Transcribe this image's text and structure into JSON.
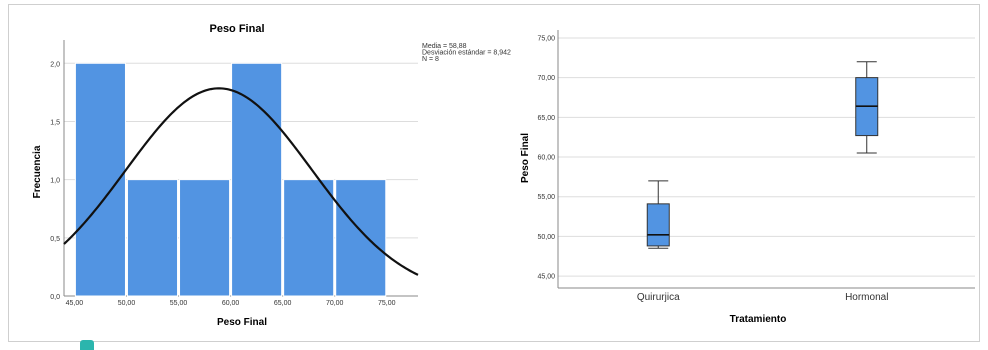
{
  "chart_data": [
    {
      "type": "bar",
      "subtype": "histogram",
      "title": "Peso Final",
      "xlabel": "Peso Final",
      "ylabel": "Frecuencia",
      "xlim": [
        44,
        78
      ],
      "ylim": [
        0,
        2.2
      ],
      "x_ticks": [
        "45,00",
        "50,00",
        "55,00",
        "60,00",
        "65,00",
        "70,00",
        "75,00"
      ],
      "x_tick_values": [
        45,
        50,
        55,
        60,
        65,
        70,
        75
      ],
      "y_ticks": [
        "0,0",
        "0,5",
        "1,0",
        "1,5",
        "2,0"
      ],
      "y_tick_values": [
        0,
        0.5,
        1.0,
        1.5,
        2.0
      ],
      "bins": [
        {
          "from": 45,
          "to": 50,
          "count": 2
        },
        {
          "from": 50,
          "to": 55,
          "count": 1
        },
        {
          "from": 55,
          "to": 60,
          "count": 1
        },
        {
          "from": 60,
          "to": 65,
          "count": 2
        },
        {
          "from": 65,
          "to": 70,
          "count": 1
        },
        {
          "from": 70,
          "to": 75,
          "count": 1
        }
      ],
      "normal_curve": {
        "mean": 58.88,
        "sd": 8.942,
        "n": 8,
        "bin_width": 5
      },
      "stats_lines": [
        "Media = 58,88",
        "Desviación estándar = 8,942",
        "N = 8"
      ],
      "bar_color": "#5294e2",
      "curve_color": "#111111",
      "grid": true
    },
    {
      "type": "boxplot",
      "xlabel": "Tratamiento",
      "ylabel": "Peso Final",
      "ylim": [
        43.5,
        76
      ],
      "y_ticks": [
        "45,00",
        "50,00",
        "55,00",
        "60,00",
        "65,00",
        "70,00",
        "75,00"
      ],
      "y_tick_values": [
        45,
        50,
        55,
        60,
        65,
        70,
        75
      ],
      "categories": [
        "Quirurjica",
        "Hormonal"
      ],
      "boxes": [
        {
          "category": "Quirurjica",
          "min": 48.5,
          "q1": 48.8,
          "median": 50.2,
          "q3": 54.1,
          "max": 57.0
        },
        {
          "category": "Hormonal",
          "min": 60.5,
          "q1": 62.7,
          "median": 66.4,
          "q3": 70.0,
          "max": 72.0
        }
      ],
      "box_color": "#5294e2",
      "grid": true
    }
  ]
}
